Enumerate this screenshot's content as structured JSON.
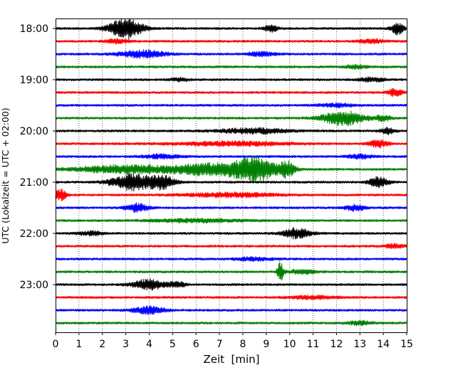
{
  "chart_data": {
    "type": "line",
    "chart_kind": "helicorder seismogram",
    "title": "",
    "xlabel": "Zeit  [min]",
    "ylabel": "UTC (Lokalzeit = UTC + 02:00)",
    "xlim": [
      0,
      15
    ],
    "x_ticks": [
      "0",
      "1",
      "2",
      "3",
      "4",
      "5",
      "6",
      "7",
      "8",
      "9",
      "10",
      "11",
      "12",
      "13",
      "14",
      "15"
    ],
    "y_ticks": [
      "18:00",
      "19:00",
      "20:00",
      "21:00",
      "22:00",
      "23:00"
    ],
    "grid": "vertical dotted at every minute",
    "legend": "none",
    "color_cycle": [
      "#000000",
      "#ff0000",
      "#0000ff",
      "#008000"
    ],
    "trace_interval_minutes": 15,
    "traces": [
      {
        "start": "18:00",
        "color": "#000000",
        "bursts": [
          [
            3.0,
            0.7,
            1.0
          ],
          [
            9.2,
            0.3,
            0.3
          ],
          [
            14.6,
            0.25,
            0.6
          ]
        ]
      },
      {
        "start": "18:15",
        "color": "#ff0000",
        "bursts": [
          [
            2.6,
            0.5,
            0.2
          ],
          [
            13.5,
            0.5,
            0.2
          ]
        ]
      },
      {
        "start": "18:30",
        "color": "#0000ff",
        "bursts": [
          [
            3.7,
            1.0,
            0.35
          ],
          [
            8.8,
            0.6,
            0.2
          ]
        ]
      },
      {
        "start": "18:45",
        "color": "#008000",
        "bursts": [
          [
            12.8,
            0.5,
            0.15
          ]
        ]
      },
      {
        "start": "19:00",
        "color": "#000000",
        "bursts": [
          [
            5.3,
            0.4,
            0.15
          ],
          [
            13.5,
            0.5,
            0.2
          ]
        ]
      },
      {
        "start": "19:15",
        "color": "#ff0000",
        "bursts": [
          [
            14.5,
            0.3,
            0.35
          ]
        ]
      },
      {
        "start": "19:30",
        "color": "#0000ff",
        "bursts": [
          [
            12.0,
            0.8,
            0.15
          ]
        ]
      },
      {
        "start": "19:45",
        "color": "#008000",
        "bursts": [
          [
            12.3,
            0.9,
            0.7
          ],
          [
            14.0,
            0.3,
            0.3
          ]
        ]
      },
      {
        "start": "20:00",
        "color": "#000000",
        "bursts": [
          [
            8.5,
            1.5,
            0.25
          ],
          [
            14.2,
            0.3,
            0.3
          ]
        ]
      },
      {
        "start": "20:15",
        "color": "#ff0000",
        "bursts": [
          [
            7.5,
            2.5,
            0.2
          ],
          [
            13.8,
            0.4,
            0.35
          ]
        ]
      },
      {
        "start": "20:30",
        "color": "#0000ff",
        "bursts": [
          [
            4.5,
            0.8,
            0.2
          ],
          [
            13.0,
            0.5,
            0.2
          ]
        ]
      },
      {
        "start": "20:45",
        "color": "#008000",
        "bursts": [
          [
            3.0,
            2.0,
            0.4
          ],
          [
            6.5,
            1.5,
            0.55
          ],
          [
            8.5,
            0.9,
            1.2
          ],
          [
            9.9,
            0.35,
            0.7
          ]
        ]
      },
      {
        "start": "21:00",
        "color": "#000000",
        "bursts": [
          [
            3.3,
            0.9,
            0.8
          ],
          [
            4.6,
            0.5,
            0.6
          ],
          [
            13.8,
            0.4,
            0.5
          ]
        ]
      },
      {
        "start": "21:15",
        "color": "#ff0000",
        "bursts": [
          [
            0.2,
            0.25,
            0.6
          ],
          [
            7.5,
            2.0,
            0.2
          ]
        ]
      },
      {
        "start": "21:30",
        "color": "#0000ff",
        "bursts": [
          [
            3.5,
            0.5,
            0.4
          ],
          [
            12.8,
            0.4,
            0.3
          ]
        ]
      },
      {
        "start": "21:45",
        "color": "#008000",
        "bursts": [
          [
            6.0,
            2.0,
            0.15
          ]
        ]
      },
      {
        "start": "22:00",
        "color": "#000000",
        "bursts": [
          [
            10.3,
            0.6,
            0.5
          ],
          [
            1.5,
            0.5,
            0.2
          ]
        ]
      },
      {
        "start": "22:15",
        "color": "#ff0000",
        "bursts": [
          [
            14.5,
            0.4,
            0.2
          ]
        ]
      },
      {
        "start": "22:30",
        "color": "#0000ff",
        "bursts": [
          [
            8.5,
            0.8,
            0.15
          ]
        ]
      },
      {
        "start": "22:45",
        "color": "#008000",
        "bursts": [
          [
            9.6,
            0.12,
            1.0
          ],
          [
            10.5,
            0.6,
            0.2
          ]
        ]
      },
      {
        "start": "23:00",
        "color": "#000000",
        "bursts": [
          [
            4.0,
            0.7,
            0.5
          ],
          [
            5.2,
            0.3,
            0.3
          ]
        ]
      },
      {
        "start": "23:15",
        "color": "#ff0000",
        "bursts": [
          [
            11.0,
            1.0,
            0.15
          ]
        ]
      },
      {
        "start": "23:30",
        "color": "#0000ff",
        "bursts": [
          [
            4.0,
            0.7,
            0.35
          ]
        ]
      },
      {
        "start": "23:45",
        "color": "#008000",
        "bursts": [
          [
            13.0,
            0.5,
            0.2
          ]
        ]
      }
    ]
  }
}
